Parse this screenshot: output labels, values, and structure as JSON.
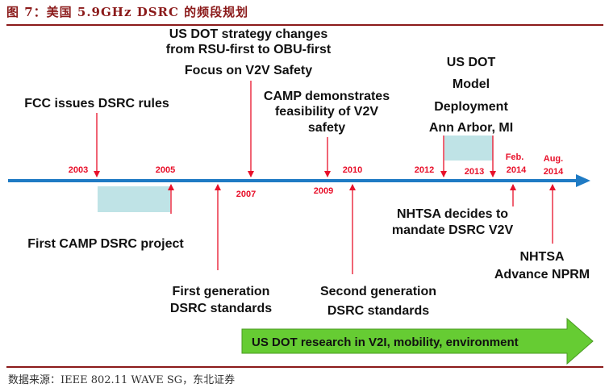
{
  "figure": {
    "title": "图 7：美国 5.9GHz DSRC 的频段规划",
    "source": "数据来源：IEEE 802.11 WAVE SG，东北证券"
  },
  "colors": {
    "timeline": "#1f7bc4",
    "marker": "#e8102a",
    "span_fill": "#bfe3e6",
    "banner_fill": "#66cc33",
    "year_text": "#e8102a"
  },
  "years": {
    "y2003": "2003",
    "y2005": "2005",
    "y2007": "2007",
    "y2009": "2009",
    "y2010": "2010",
    "y2012": "2012",
    "y2013": "2013",
    "feb2014_a": "Feb.",
    "feb2014_b": "2014",
    "aug2014_a": "Aug.",
    "aug2014_b": "2014"
  },
  "events": {
    "dot_strategy": {
      "line1": "US DOT strategy changes",
      "line2": "from RSU-first to OBU-first",
      "line3": "Focus on V2V Safety"
    },
    "fcc": {
      "line1": "FCC issues DSRC rules"
    },
    "camp_demo": {
      "line1": "CAMP demonstrates",
      "line2": "feasibility of V2V",
      "line3": "safety"
    },
    "model_deployment": {
      "line1": "US DOT",
      "line2": "Model",
      "line3": "Deployment",
      "line4": "Ann Arbor, MI"
    },
    "first_camp": {
      "line1": "First CAMP DSRC project"
    },
    "first_gen": {
      "line1": "First generation",
      "line2": "DSRC standards"
    },
    "second_gen": {
      "line1": "Second generation",
      "line2": "DSRC standards"
    },
    "nhtsa_mandate": {
      "line1": "NHTSA decides to",
      "line2": "mandate DSRC V2V"
    },
    "nhtsa_nprm": {
      "line1": "NHTSA",
      "line2": "Advance NPRM"
    }
  },
  "banner": {
    "label": "US DOT research in V2I, mobility, environment"
  }
}
